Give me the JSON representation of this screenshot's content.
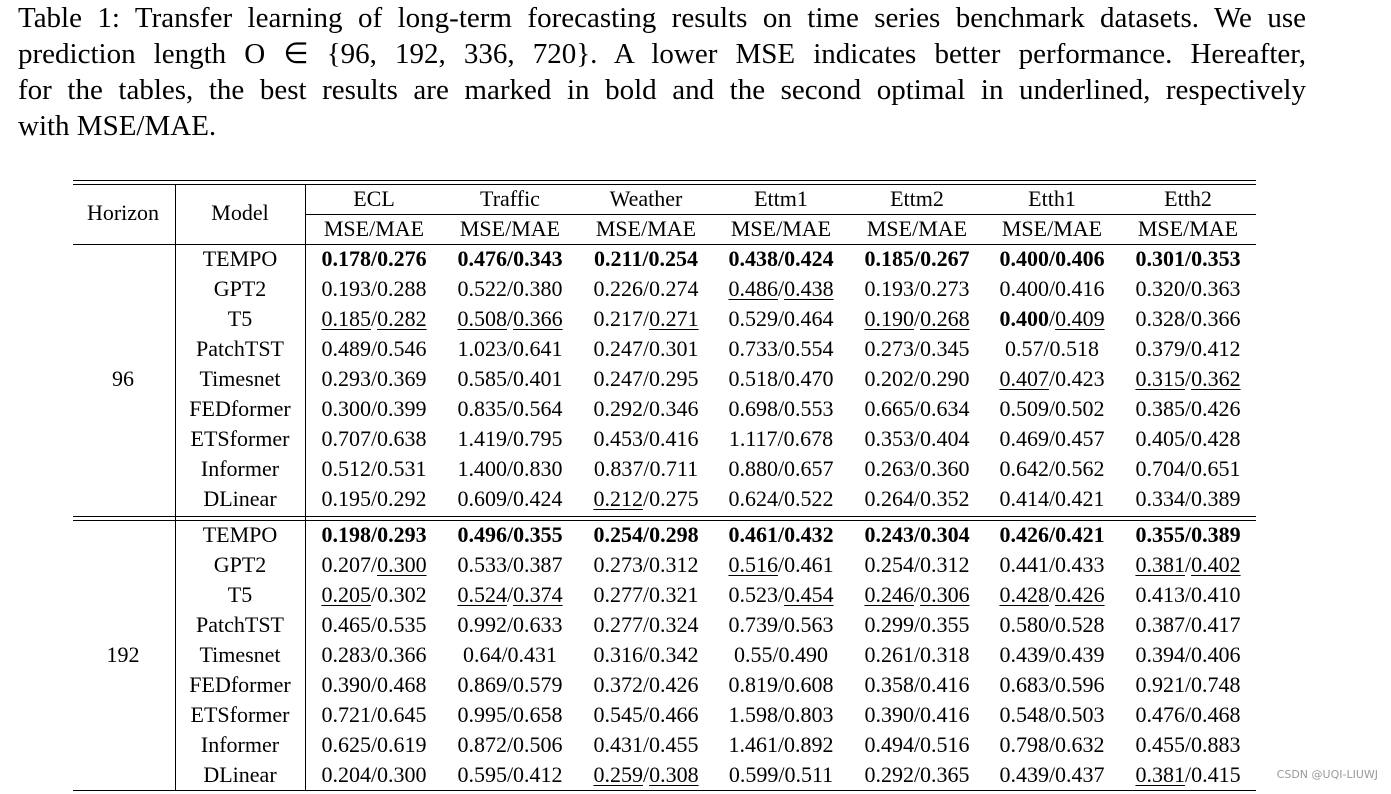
{
  "caption": [
    "Table 1: Transfer learning of long-term forecasting results on time series benchmark datasets. We use",
    "prediction length O ∈ {96, 192, 336, 720}. A lower MSE indicates better performance. Hereafter,",
    "for the tables, the best results are marked in bold and the second optimal in underlined, respectively",
    "with MSE/MAE."
  ],
  "table": {
    "header": {
      "horizon": "Horizon",
      "model": "Model",
      "datasets": [
        "ECL",
        "Traffic",
        "Weather",
        "Ettm1",
        "Ettm2",
        "Etth1",
        "Etth2"
      ],
      "metrics": [
        "MSE/MAE",
        "MSE/MAE",
        "MSE/MAE",
        "MSE/MAE",
        "MSE/MAE",
        "MSE/MAE",
        "MSE/MAE"
      ]
    },
    "groups": [
      {
        "horizon": "96",
        "rows": [
          {
            "model": "TEMPO",
            "cells": [
              {
                "text": "0.178/0.276",
                "style": [
                  "bold",
                  "bold"
                ]
              },
              {
                "text": "0.476/0.343",
                "style": [
                  "bold",
                  "bold"
                ]
              },
              {
                "text": "0.211/0.254",
                "style": [
                  "bold",
                  "bold"
                ]
              },
              {
                "text": "0.438/0.424",
                "style": [
                  "bold",
                  "bold"
                ]
              },
              {
                "text": "0.185/0.267",
                "style": [
                  "bold",
                  "bold"
                ]
              },
              {
                "text": "0.400/0.406",
                "style": [
                  "bold",
                  "bold"
                ]
              },
              {
                "text": "0.301/0.353",
                "style": [
                  "bold",
                  "bold"
                ]
              }
            ]
          },
          {
            "model": "GPT2",
            "cells": [
              "0.193/0.288",
              "0.522/0.380",
              "0.226/0.274",
              {
                "text": "0.486/0.438",
                "style": [
                  "underline",
                  "underline"
                ]
              },
              "0.193/0.273",
              "0.400/0.416",
              "0.320/0.363"
            ]
          },
          {
            "model": "T5",
            "cells": [
              {
                "text": "0.185/0.282",
                "style": [
                  "underline",
                  "underline"
                ]
              },
              {
                "text": "0.508/0.366",
                "style": [
                  "underline",
                  "underline"
                ]
              },
              {
                "text": "0.217/0.271",
                "style": [
                  "normal",
                  "underline"
                ]
              },
              "0.529/0.464",
              {
                "text": "0.190/0.268",
                "style": [
                  "underline",
                  "underline"
                ]
              },
              {
                "text": "0.400/0.409",
                "style": [
                  "bold",
                  "underline"
                ]
              },
              "0.328/0.366"
            ]
          },
          {
            "model": "PatchTST",
            "cells": [
              "0.489/0.546",
              "1.023/0.641",
              "0.247/0.301",
              "0.733/0.554",
              "0.273/0.345",
              "0.57/0.518",
              "0.379/0.412"
            ]
          },
          {
            "model": "Timesnet",
            "cells": [
              "0.293/0.369",
              "0.585/0.401",
              "0.247/0.295",
              "0.518/0.470",
              "0.202/0.290",
              {
                "text": "0.407/0.423",
                "style": [
                  "underline",
                  "normal"
                ]
              },
              {
                "text": "0.315/0.362",
                "style": [
                  "underline",
                  "underline"
                ]
              }
            ]
          },
          {
            "model": "FEDformer",
            "cells": [
              "0.300/0.399",
              "0.835/0.564",
              "0.292/0.346",
              "0.698/0.553",
              "0.665/0.634",
              "0.509/0.502",
              "0.385/0.426"
            ]
          },
          {
            "model": "ETSformer",
            "cells": [
              "0.707/0.638",
              "1.419/0.795",
              "0.453/0.416",
              "1.117/0.678",
              "0.353/0.404",
              "0.469/0.457",
              "0.405/0.428"
            ]
          },
          {
            "model": "Informer",
            "cells": [
              "0.512/0.531",
              "1.400/0.830",
              "0.837/0.711",
              "0.880/0.657",
              "0.263/0.360",
              "0.642/0.562",
              "0.704/0.651"
            ]
          },
          {
            "model": "DLinear",
            "cells": [
              "0.195/0.292",
              "0.609/0.424",
              {
                "text": "0.212/0.275",
                "style": [
                  "underline",
                  "normal"
                ]
              },
              "0.624/0.522",
              "0.264/0.352",
              "0.414/0.421",
              "0.334/0.389"
            ]
          }
        ]
      },
      {
        "horizon": "192",
        "rows": [
          {
            "model": "TEMPO",
            "cells": [
              {
                "text": "0.198/0.293",
                "style": [
                  "bold",
                  "bold"
                ]
              },
              {
                "text": "0.496/0.355",
                "style": [
                  "bold",
                  "bold"
                ]
              },
              {
                "text": "0.254/0.298",
                "style": [
                  "bold",
                  "bold"
                ]
              },
              {
                "text": "0.461/0.432",
                "style": [
                  "bold",
                  "bold"
                ]
              },
              {
                "text": "0.243/0.304",
                "style": [
                  "bold",
                  "bold"
                ]
              },
              {
                "text": "0.426/0.421",
                "style": [
                  "bold",
                  "bold"
                ]
              },
              {
                "text": "0.355/0.389",
                "style": [
                  "bold",
                  "bold"
                ]
              }
            ]
          },
          {
            "model": "GPT2",
            "cells": [
              {
                "text": "0.207/0.300",
                "style": [
                  "normal",
                  "underline"
                ]
              },
              "0.533/0.387",
              "0.273/0.312",
              {
                "text": "0.516/0.461",
                "style": [
                  "underline",
                  "normal"
                ]
              },
              "0.254/0.312",
              "0.441/0.433",
              {
                "text": "0.381/0.402",
                "style": [
                  "underline",
                  "underline"
                ]
              }
            ]
          },
          {
            "model": "T5",
            "cells": [
              {
                "text": "0.205/0.302",
                "style": [
                  "underline",
                  "normal"
                ]
              },
              {
                "text": "0.524/0.374",
                "style": [
                  "underline",
                  "underline"
                ]
              },
              "0.277/0.321",
              {
                "text": "0.523/0.454",
                "style": [
                  "normal",
                  "underline"
                ]
              },
              {
                "text": "0.246/0.306",
                "style": [
                  "underline",
                  "underline"
                ]
              },
              {
                "text": "0.428/0.426",
                "style": [
                  "underline",
                  "underline"
                ]
              },
              "0.413/0.410"
            ]
          },
          {
            "model": "PatchTST",
            "cells": [
              "0.465/0.535",
              "0.992/0.633",
              "0.277/0.324",
              "0.739/0.563",
              "0.299/0.355",
              "0.580/0.528",
              "0.387/0.417"
            ]
          },
          {
            "model": "Timesnet",
            "cells": [
              "0.283/0.366",
              "0.64/0.431",
              "0.316/0.342",
              "0.55/0.490",
              "0.261/0.318",
              "0.439/0.439",
              "0.394/0.406"
            ]
          },
          {
            "model": "FEDformer",
            "cells": [
              "0.390/0.468",
              "0.869/0.579",
              "0.372/0.426",
              "0.819/0.608",
              "0.358/0.416",
              "0.683/0.596",
              "0.921/0.748"
            ]
          },
          {
            "model": "ETSformer",
            "cells": [
              "0.721/0.645",
              "0.995/0.658",
              "0.545/0.466",
              "1.598/0.803",
              "0.390/0.416",
              "0.548/0.503",
              "0.476/0.468"
            ]
          },
          {
            "model": "Informer",
            "cells": [
              "0.625/0.619",
              "0.872/0.506",
              "0.431/0.455",
              "1.461/0.892",
              "0.494/0.516",
              "0.798/0.632",
              "0.455/0.883"
            ]
          },
          {
            "model": "DLinear",
            "cells": [
              "0.204/0.300",
              "0.595/0.412",
              {
                "text": "0.259/0.308",
                "style": [
                  "underline",
                  "underline"
                ]
              },
              "0.599/0.511",
              "0.292/0.365",
              "0.439/0.437",
              {
                "text": "0.381/0.415",
                "style": [
                  "underline",
                  "normal"
                ]
              }
            ]
          }
        ]
      }
    ]
  },
  "watermark": "CSDN @UQI-LIUWJ"
}
